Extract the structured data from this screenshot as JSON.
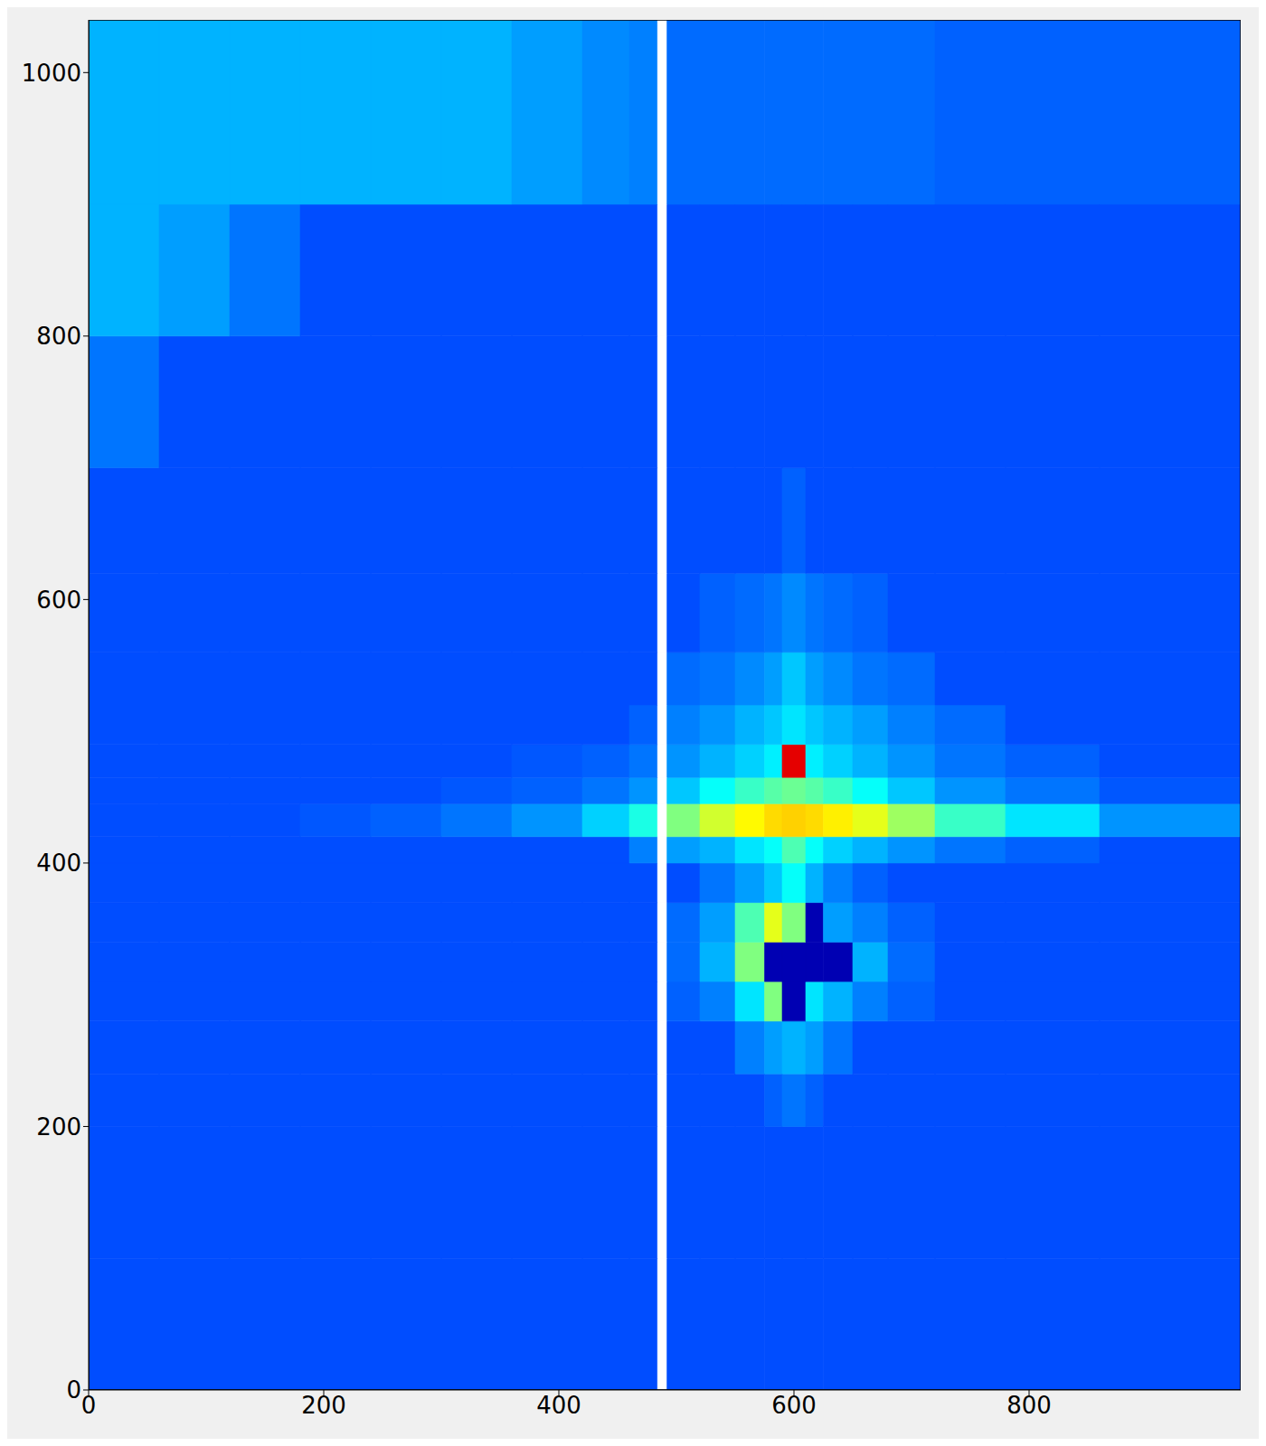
{
  "chart_data": {
    "type": "heatmap",
    "xlim": [
      0,
      980
    ],
    "ylim": [
      0,
      1040
    ],
    "xticks": [
      0,
      200,
      400,
      600,
      800
    ],
    "yticks": [
      0,
      200,
      400,
      600,
      800,
      1000
    ],
    "clim": [
      0,
      10
    ],
    "x_edges": [
      0,
      60,
      120,
      180,
      240,
      300,
      360,
      420,
      460,
      484,
      492,
      520,
      550,
      575,
      590,
      610,
      625,
      650,
      680,
      720,
      780,
      860,
      980
    ],
    "y_edges": [
      0,
      100,
      200,
      240,
      280,
      310,
      340,
      370,
      400,
      420,
      445,
      465,
      490,
      520,
      560,
      620,
      700,
      800,
      900,
      1040
    ],
    "cells": [
      [
        2,
        2,
        2,
        2,
        2,
        2,
        2,
        2,
        2,
        null,
        2,
        2,
        2,
        2,
        2,
        2,
        2,
        2,
        2,
        2,
        2,
        2
      ],
      [
        2,
        2,
        2,
        2,
        2,
        2,
        2,
        2,
        2,
        null,
        2,
        2,
        2,
        2,
        2,
        2,
        2,
        2,
        2,
        2,
        2,
        2
      ],
      [
        2,
        2,
        2,
        2,
        2,
        2,
        2,
        2,
        2,
        null,
        2,
        2,
        2,
        2.2,
        2.4,
        2.2,
        2,
        2,
        2,
        2,
        2,
        2
      ],
      [
        2,
        2,
        2,
        2,
        2,
        2,
        2,
        2,
        2,
        null,
        2,
        2,
        2.5,
        2.8,
        3,
        2.8,
        2.4,
        2,
        2,
        2,
        2,
        2
      ],
      [
        2,
        2,
        2,
        2,
        2,
        2,
        2,
        2,
        2,
        null,
        2.2,
        2.5,
        3.5,
        5,
        0.5,
        3.5,
        3,
        2.5,
        2.2,
        2,
        2,
        2
      ],
      [
        2,
        2,
        2,
        2,
        2,
        2,
        2,
        2,
        2,
        null,
        2.3,
        3,
        5,
        0.5,
        0.5,
        0.5,
        0.5,
        3,
        2.3,
        2,
        2,
        2
      ],
      [
        2,
        2,
        2,
        2,
        2,
        2,
        2,
        2,
        2,
        null,
        2.3,
        2.8,
        4.5,
        6,
        5,
        0.5,
        2.8,
        2.5,
        2.2,
        2,
        2,
        2
      ],
      [
        2,
        2,
        2,
        2,
        2,
        2,
        2,
        2,
        2,
        null,
        2,
        2.4,
        2.8,
        3.2,
        3.8,
        3,
        2.5,
        2.2,
        2,
        2,
        2,
        2
      ],
      [
        2,
        2,
        2,
        2,
        2,
        2,
        2,
        2,
        2.5,
        null,
        2.8,
        3,
        3.5,
        3.8,
        4.5,
        3.8,
        3.3,
        3,
        2.7,
        2.4,
        2.2,
        2
      ],
      [
        2,
        2,
        2,
        2.1,
        2.2,
        2.4,
        2.7,
        3.3,
        4,
        null,
        5,
        5.8,
        6.3,
        6.6,
        6.7,
        6.6,
        6.4,
        6,
        5.3,
        4.3,
        3.5,
        2.7
      ],
      [
        2,
        2,
        2,
        2,
        2,
        2.1,
        2.2,
        2.4,
        2.7,
        null,
        3.2,
        3.8,
        4.3,
        4.6,
        4.8,
        4.6,
        4.3,
        3.8,
        3.2,
        2.7,
        2.4,
        2.1
      ],
      [
        2,
        2,
        2,
        2,
        2,
        2,
        2.1,
        2.2,
        2.4,
        null,
        2.7,
        3,
        3.3,
        3.6,
        9,
        3.6,
        3.3,
        3,
        2.7,
        2.4,
        2.2,
        2
      ],
      [
        2,
        2,
        2,
        2,
        2,
        2,
        2,
        2,
        2.2,
        null,
        2.5,
        2.7,
        3,
        3.2,
        3.5,
        3.2,
        3,
        2.8,
        2.5,
        2.3,
        2,
        2
      ],
      [
        2,
        2,
        2,
        2,
        2,
        2,
        2,
        2,
        2,
        null,
        2.3,
        2.4,
        2.6,
        2.8,
        3.2,
        2.8,
        2.6,
        2.4,
        2.3,
        2,
        2,
        2
      ],
      [
        2,
        2,
        2,
        2,
        2,
        2,
        2,
        2,
        2,
        null,
        2,
        2.2,
        2.3,
        2.4,
        2.6,
        2.4,
        2.3,
        2.2,
        2,
        2,
        2,
        2
      ],
      [
        2,
        2,
        2,
        2,
        2,
        2,
        2,
        2,
        2,
        null,
        2,
        2,
        2,
        2,
        2.2,
        2,
        2,
        2,
        2,
        2,
        2,
        2
      ],
      [
        2.4,
        2,
        2,
        2,
        2,
        2,
        2,
        2,
        2,
        null,
        2,
        2,
        2,
        2,
        2,
        2,
        2,
        2,
        2,
        2,
        2,
        2
      ],
      [
        3,
        2.8,
        2.4,
        2,
        2,
        2,
        2,
        2,
        2,
        null,
        2,
        2,
        2,
        2,
        2,
        2,
        2,
        2,
        2,
        2,
        2,
        2
      ],
      [
        3,
        3,
        3,
        3,
        3,
        3,
        2.8,
        2.6,
        2.5,
        null,
        2.3,
        2.3,
        2.3,
        2.3,
        2.3,
        2.3,
        2.3,
        2.3,
        2.3,
        2.2,
        2.2,
        2.2
      ]
    ]
  }
}
